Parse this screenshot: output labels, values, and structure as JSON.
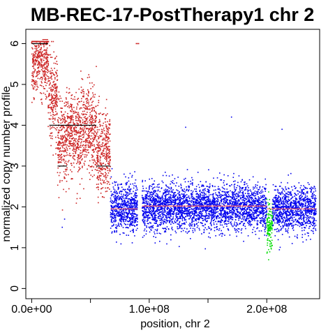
{
  "chart_data": {
    "type": "scatter",
    "title": "MB-REC-17-PostTherapy1 chr 2",
    "xlabel": "position, chr 2",
    "ylabel": "normalized copy number profile",
    "xlim": [
      -5000000,
      245000000
    ],
    "ylim": [
      -0.25,
      6.35
    ],
    "x_ticks": [
      {
        "value": 0,
        "label": "0.0e+00"
      },
      {
        "value": 50000000,
        "label": ""
      },
      {
        "value": 100000000,
        "label": "1.0e+08"
      },
      {
        "value": 150000000,
        "label": ""
      },
      {
        "value": 200000000,
        "label": "2.0e+08"
      }
    ],
    "y_ticks": [
      {
        "value": 0,
        "label": "0"
      },
      {
        "value": 1,
        "label": "1"
      },
      {
        "value": 2,
        "label": "2"
      },
      {
        "value": 3,
        "label": "3"
      },
      {
        "value": 4,
        "label": "4"
      },
      {
        "value": 5,
        "label": "5"
      },
      {
        "value": 6,
        "label": "6"
      }
    ],
    "grid": false,
    "colors": {
      "gain": "#cc2222",
      "neutral": "#0000ee",
      "loss": "#00dd00",
      "segment": "#000000",
      "segment_neutral": "#ff6666"
    },
    "regions": [
      {
        "start": 0,
        "end": 14000000,
        "mean": 5.6,
        "sd": 0.45,
        "color": "#cc2222"
      },
      {
        "start": 14000000,
        "end": 22000000,
        "mean": 4.7,
        "sd": 0.55,
        "color": "#cc2222"
      },
      {
        "start": 22000000,
        "end": 30000000,
        "mean": 3.6,
        "sd": 0.55,
        "color": "#cc2222"
      },
      {
        "start": 30000000,
        "end": 40000000,
        "mean": 3.8,
        "sd": 0.5,
        "color": "#cc2222"
      },
      {
        "start": 40000000,
        "end": 55000000,
        "mean": 3.9,
        "sd": 0.55,
        "color": "#cc2222"
      },
      {
        "start": 55000000,
        "end": 67000000,
        "mean": 3.3,
        "sd": 0.5,
        "color": "#cc2222"
      },
      {
        "start": 67000000,
        "end": 90000000,
        "mean": 1.95,
        "sd": 0.3,
        "color": "#0000ee"
      },
      {
        "start": 94000000,
        "end": 200000000,
        "mean": 2.0,
        "sd": 0.28,
        "color": "#0000ee"
      },
      {
        "start": 200000000,
        "end": 205000000,
        "mean": 1.5,
        "sd": 0.3,
        "color": "#00dd00"
      },
      {
        "start": 205000000,
        "end": 242000000,
        "mean": 1.95,
        "sd": 0.28,
        "color": "#0000ee"
      }
    ],
    "segments": [
      {
        "x0": 0,
        "x1": 14000000,
        "y": 6.0,
        "color": "#000000"
      },
      {
        "x0": 9000000,
        "x1": 14000000,
        "y": 6.1,
        "color": "#cc2222"
      },
      {
        "x0": 15000000,
        "x1": 55000000,
        "y": 4.0,
        "color": "#000000"
      },
      {
        "x0": 22000000,
        "x1": 30000000,
        "y": 3.0,
        "color": "#000000"
      },
      {
        "x0": 55000000,
        "x1": 67000000,
        "y": 3.0,
        "color": "#000000"
      },
      {
        "x0": 67000000,
        "x1": 90000000,
        "y": 1.95,
        "color": "#ff6666"
      },
      {
        "x0": 94000000,
        "x1": 200000000,
        "y": 2.02,
        "color": "#ff6666"
      },
      {
        "x0": 200000000,
        "x1": 242000000,
        "y": 1.95,
        "color": "#ff6666"
      }
    ],
    "outliers": [
      {
        "x": 89000000,
        "y": 6.0,
        "color": "#cc2222"
      },
      {
        "x": 90000000,
        "y": 6.0,
        "color": "#cc2222"
      },
      {
        "x": 91000000,
        "y": 6.0,
        "color": "#cc2222"
      },
      {
        "x": 170000000,
        "y": 4.2,
        "color": "#0000ee"
      },
      {
        "x": 131000000,
        "y": 3.95,
        "color": "#0000ee"
      },
      {
        "x": 213000000,
        "y": 3.9,
        "color": "#0000ee"
      },
      {
        "x": 26000000,
        "y": 1.5,
        "color": "#0000ee"
      },
      {
        "x": 28000000,
        "y": 1.7,
        "color": "#0000ee"
      }
    ]
  }
}
